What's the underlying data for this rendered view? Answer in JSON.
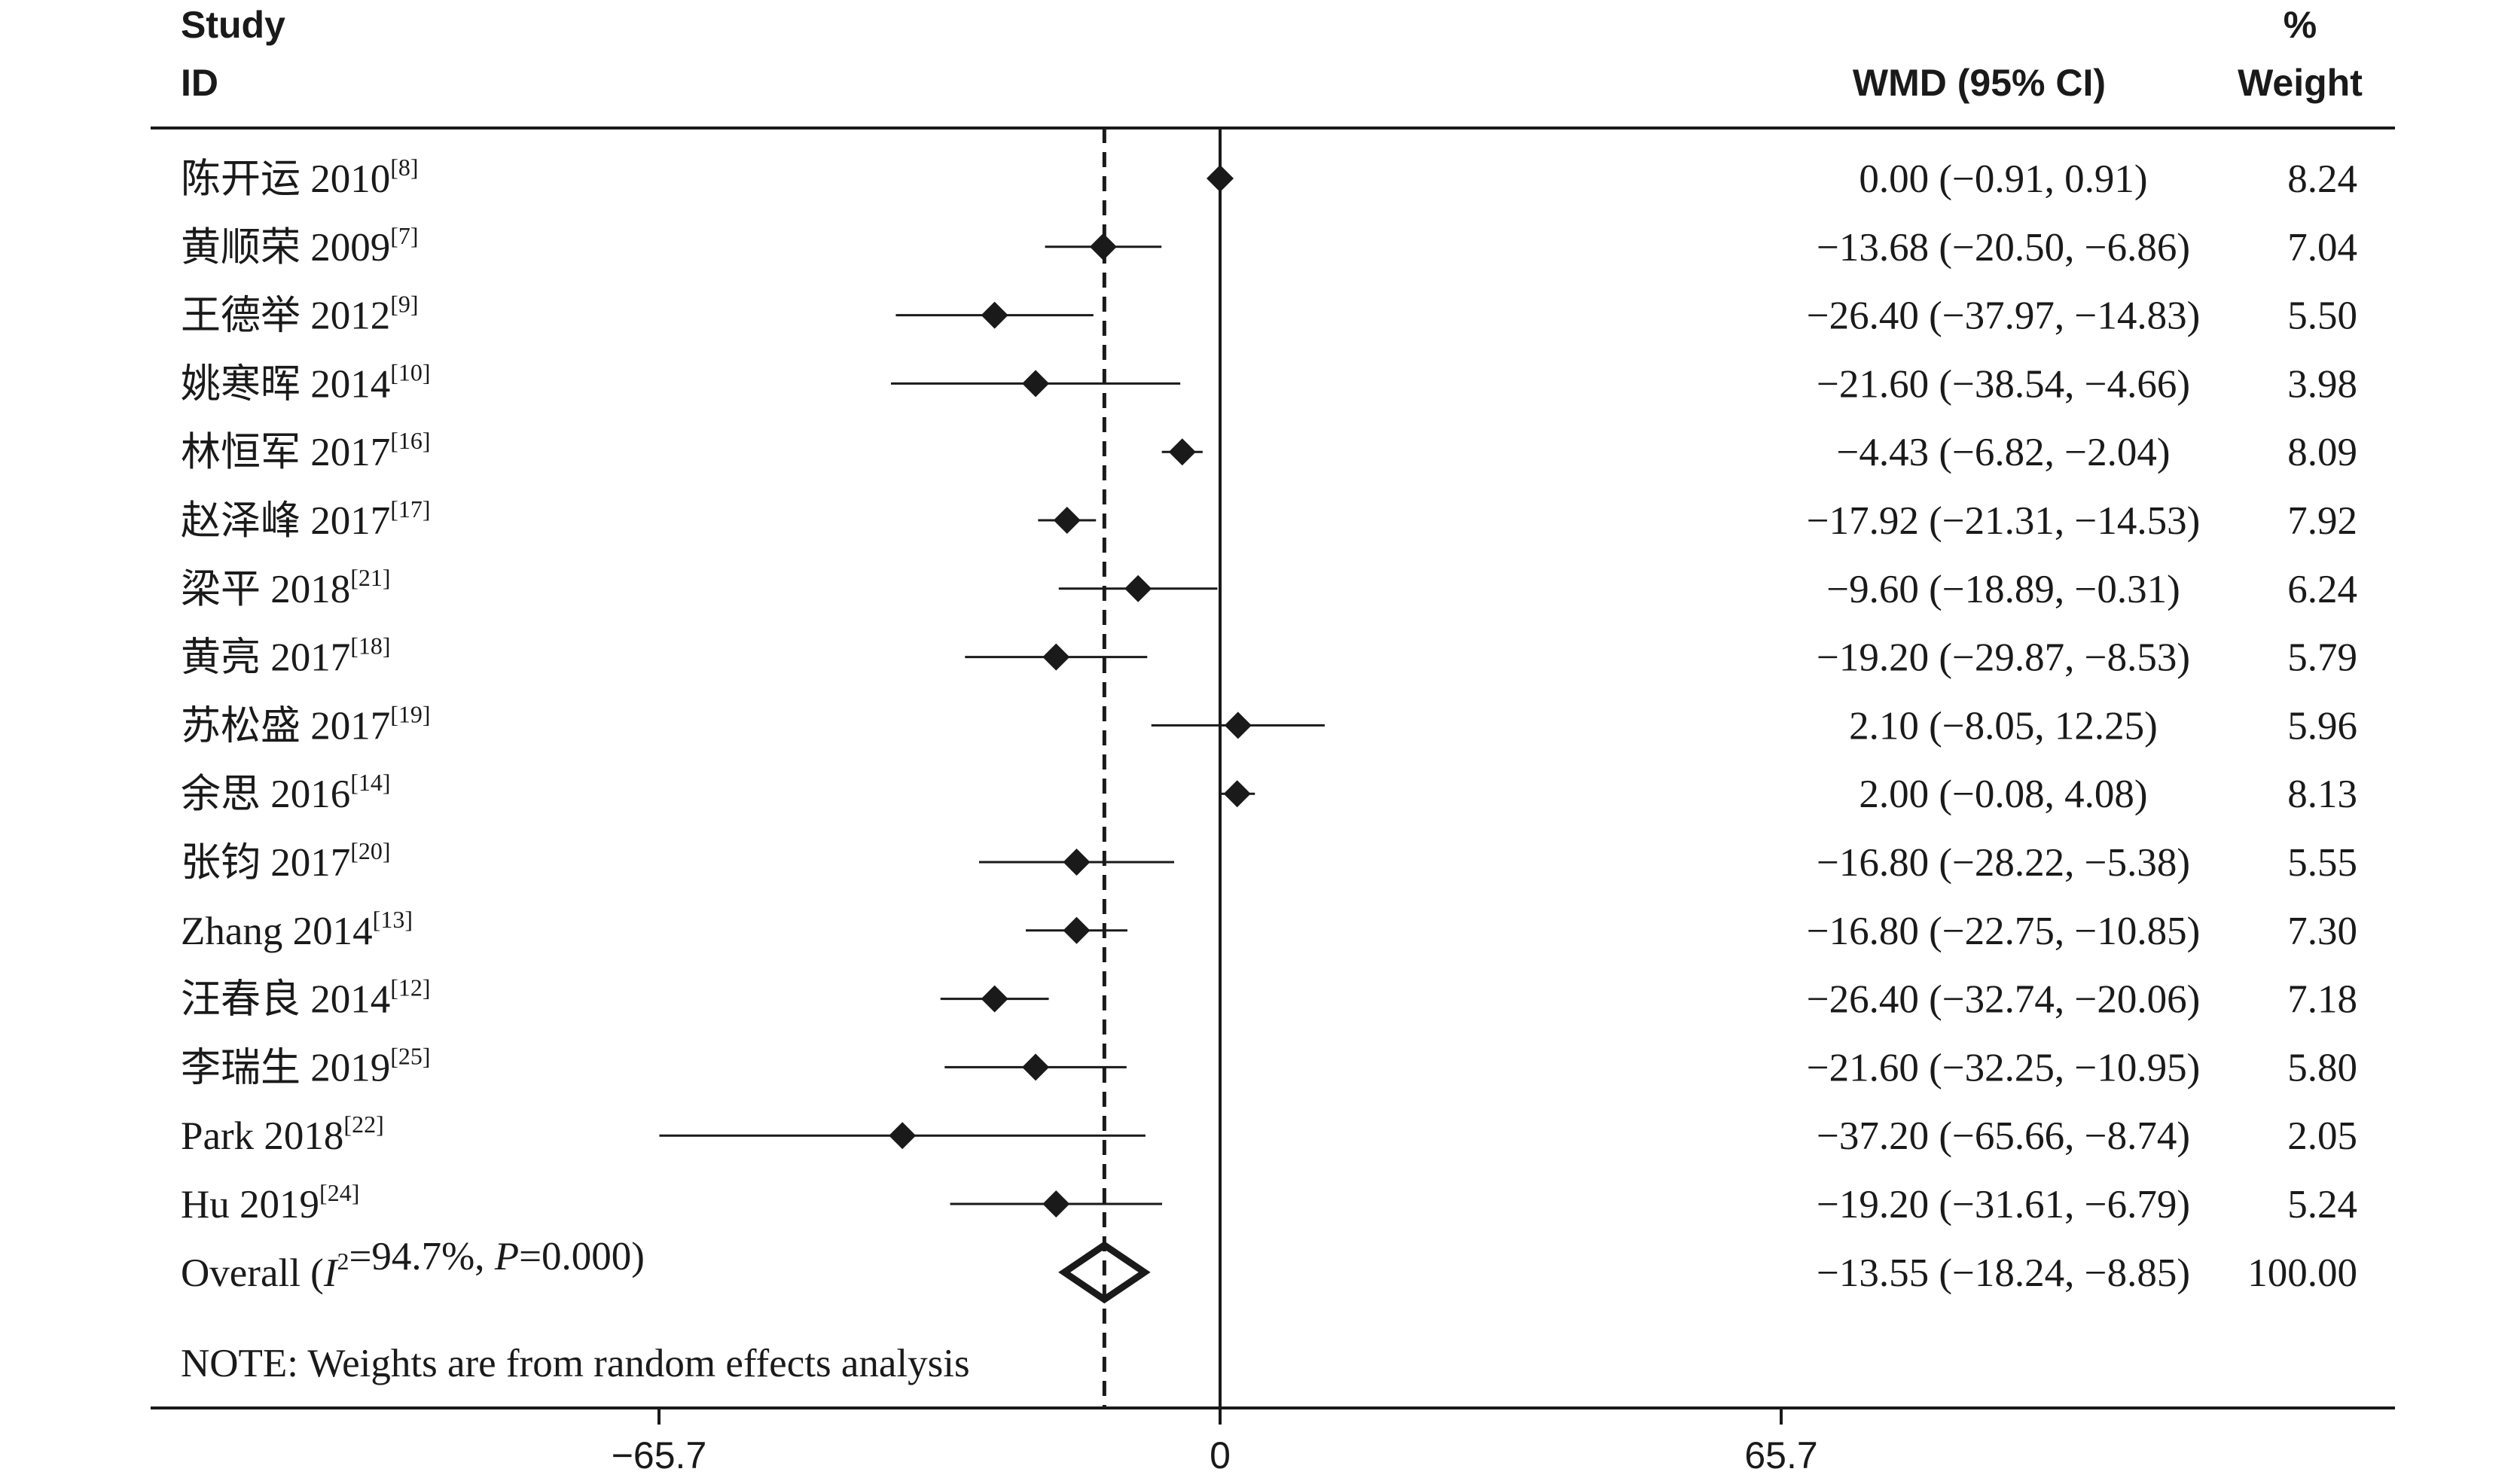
{
  "headers": {
    "study_line1": "Study",
    "study_line2": "ID",
    "effect": "WMD (95% CI)",
    "weight_line1": "%",
    "weight_line2": "Weight"
  },
  "note": "NOTE: Weights are from random effects analysis",
  "colors": {
    "ink": "#1a1a1a",
    "background": "#ffffff"
  },
  "chart_data": {
    "type": "forest",
    "measure": "WMD (95% CI)",
    "xlim": [
      -65.7,
      65.7
    ],
    "x_ticks": [
      {
        "value": -65.7,
        "label": "−65.7"
      },
      {
        "value": 0,
        "label": "0"
      },
      {
        "value": 65.7,
        "label": "65.7"
      }
    ],
    "reference_line": 0,
    "pooled_line": -13.55,
    "studies": [
      {
        "name": "陈开运 2010",
        "ref": "[8]",
        "est": 0.0,
        "lo": -0.91,
        "hi": 0.91,
        "ci_text": "0.00 (−0.91, 0.91)",
        "weight": "8.24"
      },
      {
        "name": "黄顺荣 2009",
        "ref": "[7]",
        "est": -13.68,
        "lo": -20.5,
        "hi": -6.86,
        "ci_text": "−13.68 (−20.50, −6.86)",
        "weight": "7.04"
      },
      {
        "name": "王德举 2012",
        "ref": "[9]",
        "est": -26.4,
        "lo": -37.97,
        "hi": -14.83,
        "ci_text": "−26.40 (−37.97, −14.83)",
        "weight": "5.50"
      },
      {
        "name": "姚寒晖 2014",
        "ref": "[10]",
        "est": -21.6,
        "lo": -38.54,
        "hi": -4.66,
        "ci_text": "−21.60 (−38.54, −4.66)",
        "weight": "3.98"
      },
      {
        "name": "林恒军 2017",
        "ref": "[16]",
        "est": -4.43,
        "lo": -6.82,
        "hi": -2.04,
        "ci_text": "−4.43 (−6.82, −2.04)",
        "weight": "8.09"
      },
      {
        "name": "赵泽峰 2017",
        "ref": "[17]",
        "est": -17.92,
        "lo": -21.31,
        "hi": -14.53,
        "ci_text": "−17.92 (−21.31, −14.53)",
        "weight": "7.92"
      },
      {
        "name": "梁平 2018",
        "ref": "[21]",
        "est": -9.6,
        "lo": -18.89,
        "hi": -0.31,
        "ci_text": "−9.60 (−18.89, −0.31)",
        "weight": "6.24"
      },
      {
        "name": "黄亮 2017",
        "ref": "[18]",
        "est": -19.2,
        "lo": -29.87,
        "hi": -8.53,
        "ci_text": "−19.20 (−29.87, −8.53)",
        "weight": "5.79"
      },
      {
        "name": "苏松盛 2017",
        "ref": "[19]",
        "est": 2.1,
        "lo": -8.05,
        "hi": 12.25,
        "ci_text": "2.10 (−8.05, 12.25)",
        "weight": "5.96"
      },
      {
        "name": "余思 2016",
        "ref": "[14]",
        "est": 2.0,
        "lo": -0.08,
        "hi": 4.08,
        "ci_text": "2.00 (−0.08, 4.08)",
        "weight": "8.13"
      },
      {
        "name": "张钧 2017",
        "ref": "[20]",
        "est": -16.8,
        "lo": -28.22,
        "hi": -5.38,
        "ci_text": "−16.80 (−28.22, −5.38)",
        "weight": "5.55"
      },
      {
        "name": "Zhang 2014",
        "ref": "[13]",
        "est": -16.8,
        "lo": -22.75,
        "hi": -10.85,
        "ci_text": "−16.80 (−22.75, −10.85)",
        "weight": "7.30"
      },
      {
        "name": "汪春良 2014",
        "ref": "[12]",
        "est": -26.4,
        "lo": -32.74,
        "hi": -20.06,
        "ci_text": "−26.40 (−32.74, −20.06)",
        "weight": "7.18"
      },
      {
        "name": "李瑞生 2019",
        "ref": "[25]",
        "est": -21.6,
        "lo": -32.25,
        "hi": -10.95,
        "ci_text": "−21.60 (−32.25, −10.95)",
        "weight": "5.80"
      },
      {
        "name": "Park 2018",
        "ref": "[22]",
        "est": -37.2,
        "lo": -65.66,
        "hi": -8.74,
        "ci_text": "−37.20 (−65.66, −8.74)",
        "weight": "2.05"
      },
      {
        "name": "Hu 2019",
        "ref": "[24]",
        "est": -19.2,
        "lo": -31.61,
        "hi": -6.79,
        "ci_text": "−19.20 (−31.61, −6.79)",
        "weight": "5.24"
      }
    ],
    "overall": {
      "label_prefix": "Overall  (",
      "i_symbol": "I",
      "i_sup": "2",
      "i_value": "=94.7%, ",
      "p_symbol": "P",
      "p_value": "=0.000)",
      "est": -13.55,
      "lo": -18.24,
      "hi": -8.85,
      "ci_text": "−13.55 (−18.24, −8.85)",
      "weight": "100.00"
    }
  }
}
